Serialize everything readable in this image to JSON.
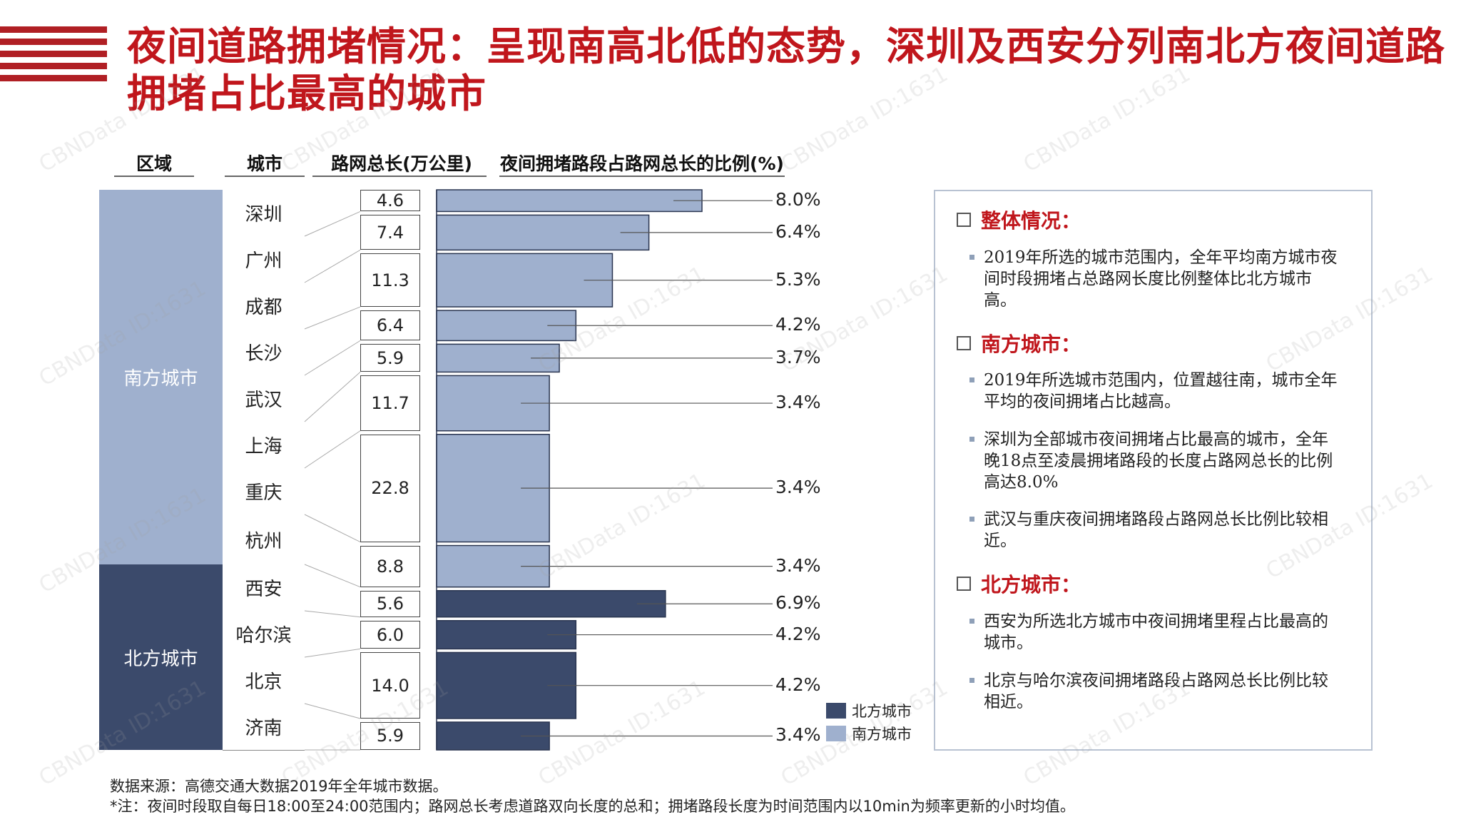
{
  "title": "夜间道路拥堵情况：呈现南高北低的态势，深圳及西安分列南北方夜间道路拥堵占比最高的城市",
  "headers": {
    "region": "区域",
    "city": "城市",
    "length": "路网总长(万公里)",
    "ratio": "夜间拥堵路段占路网总长的比例(%)"
  },
  "regions": {
    "south": "南方城市",
    "north": "北方城市"
  },
  "cities": [
    "深圳",
    "广州",
    "成都",
    "长沙",
    "武汉",
    "上海",
    "重庆",
    "杭州",
    "西安",
    "哈尔滨",
    "北京",
    "济南"
  ],
  "lengths": [
    "4.6",
    "7.4",
    "11.3",
    "6.4",
    "5.9",
    "11.7",
    "22.8",
    "8.8",
    "5.6",
    "6.0",
    "14.0",
    "5.9"
  ],
  "percent_labels": [
    "8.0%",
    "6.4%",
    "5.3%",
    "4.2%",
    "3.7%",
    "3.4%",
    "3.4%",
    "3.4%",
    "6.9%",
    "4.2%",
    "4.2%",
    "3.4%"
  ],
  "legend": {
    "north": "北方城市",
    "south": "南方城市"
  },
  "colors": {
    "north": "#3b4a6b",
    "south": "#9fb0ce",
    "accent": "#c0161c"
  },
  "chart_data": {
    "type": "bar",
    "orientation": "horizontal",
    "bar_thickness_encodes": "路网总长(万公里)",
    "categories": [
      "深圳",
      "广州",
      "成都",
      "长沙",
      "武汉",
      "上海",
      "重庆",
      "杭州",
      "西安",
      "哈尔滨",
      "北京",
      "济南"
    ],
    "series": [
      {
        "name": "南方城市",
        "values": [
          8.0,
          6.4,
          5.3,
          4.2,
          3.7,
          3.4,
          3.4,
          3.4,
          null,
          null,
          null,
          null
        ]
      },
      {
        "name": "北方城市",
        "values": [
          null,
          null,
          null,
          null,
          null,
          null,
          null,
          null,
          6.9,
          4.2,
          4.2,
          3.4
        ]
      }
    ],
    "road_length": [
      4.6,
      7.4,
      11.3,
      6.4,
      5.9,
      11.7,
      22.8,
      8.8,
      5.6,
      6.0,
      14.0,
      5.9
    ],
    "legend_position": "bottom-right"
  },
  "panel": {
    "sections": [
      {
        "heading": "整体情况：",
        "bullets": [
          "2019年所选的城市范围内，全年平均南方城市夜间时段拥堵占总路网长度比例整体比北方城市高。"
        ]
      },
      {
        "heading": "南方城市：",
        "bullets": [
          "2019年所选城市范围内，位置越往南，城市全年平均的夜间拥堵占比越高。",
          "深圳为全部城市夜间拥堵占比最高的城市，全年晚18点至凌晨拥堵路段的长度占路网总长的比例高达8.0%",
          "武汉与重庆夜间拥堵路段占路网总长比例比较相近。"
        ]
      },
      {
        "heading": "北方城市：",
        "bullets": [
          "西安为所选北方城市中夜间拥堵里程占比最高的城市。",
          "北京与哈尔滨夜间拥堵路段占路网总长比例比较相近。"
        ]
      }
    ]
  },
  "footer": {
    "source": "数据来源：高德交通大数据2019年全年城市数据。",
    "note": "*注：夜间时段取自每日18:00至24:00范围内；路网总长考虑道路双向长度的总和；拥堵路段长度为时间范围内以10min为频率更新的小时均值。"
  },
  "watermark": "CBNData ID:1631"
}
